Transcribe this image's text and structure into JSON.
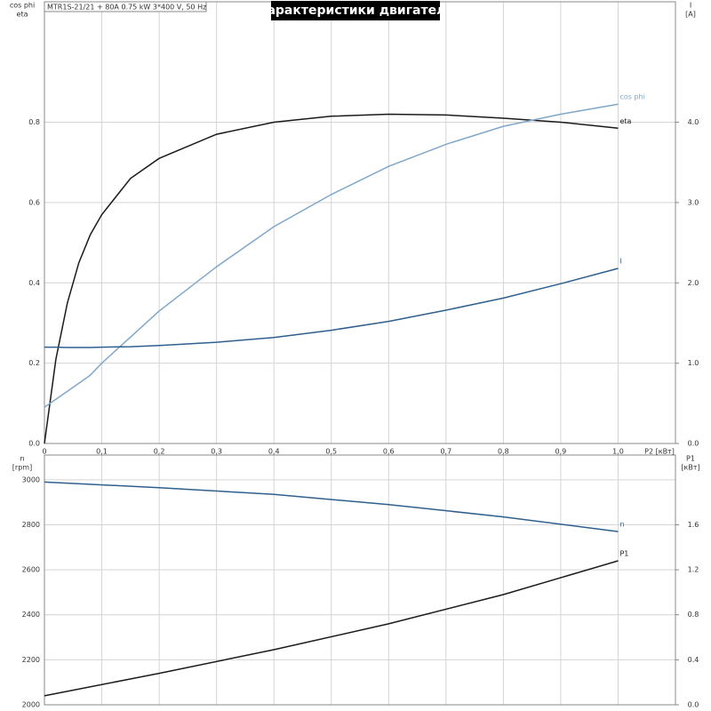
{
  "chart_data": [
    {
      "type": "line",
      "title": "Характеристики двигателя",
      "subtitle": "MTR1S-21/21 + 80A   0.75 kW   3*400 V, 50 Hz",
      "y_label": [
        "cos phi",
        "eta"
      ],
      "y2_label": [
        "I",
        "[A]"
      ],
      "x_label": "P2 [кВт]",
      "x": [
        0,
        0.02,
        0.04,
        0.06,
        0.08,
        0.1,
        0.15,
        0.2,
        0.3,
        0.4,
        0.5,
        0.6,
        0.7,
        0.8,
        0.9,
        1.0
      ],
      "xlim": [
        0,
        1.1
      ],
      "xticks": [
        0,
        {
          "value": 0.1,
          "label": "0,1"
        },
        {
          "value": 0.2,
          "label": "0,2"
        },
        {
          "value": 0.3,
          "label": "0,3"
        },
        {
          "value": 0.4,
          "label": "0,4"
        },
        {
          "value": 0.5,
          "label": "0,5"
        },
        {
          "value": 0.6,
          "label": "0,6"
        },
        {
          "value": 0.7,
          "label": "0,7"
        },
        {
          "value": 0.8,
          "label": "0,8"
        },
        {
          "value": 0.9,
          "label": "0,9"
        },
        {
          "value": 1.0,
          "label": "1,0"
        }
      ],
      "ylim": [
        0,
        1.1
      ],
      "yticks": [
        {
          "value": 0,
          "label": "0.0"
        },
        0.2,
        0.4,
        0.6,
        0.8
      ],
      "y2lim": [
        0,
        5.5
      ],
      "y2ticks": [
        {
          "value": 0,
          "label": "0.0"
        },
        {
          "value": 1,
          "label": "1.0"
        },
        {
          "value": 2,
          "label": "2.0"
        },
        {
          "value": 3,
          "label": "3.0"
        },
        {
          "value": 4,
          "label": "4.0"
        }
      ],
      "grid": true,
      "series": [
        {
          "name": "eta",
          "color": "#1a1a1a",
          "values": [
            0,
            0.21,
            0.35,
            0.45,
            0.52,
            0.57,
            0.66,
            0.71,
            0.77,
            0.8,
            0.815,
            0.82,
            0.818,
            0.81,
            0.8,
            0.785
          ]
        },
        {
          "name": "cos phi",
          "color": "#7fa7c9",
          "values": [
            0.09,
            0.11,
            0.13,
            0.15,
            0.17,
            0.2,
            0.265,
            0.33,
            0.44,
            0.54,
            0.62,
            0.69,
            0.745,
            0.79,
            0.82,
            0.845
          ]
        },
        {
          "name": "I",
          "color": "#2e5f8e",
          "axis": "y2",
          "values": [
            1.2,
            1.2,
            1.195,
            1.195,
            1.195,
            1.2,
            1.205,
            1.22,
            1.26,
            1.32,
            1.41,
            1.52,
            1.66,
            1.81,
            1.99,
            2.18
          ]
        }
      ]
    },
    {
      "type": "line",
      "y_label": [
        "n",
        "[rpm]"
      ],
      "y2_label": [
        "P1",
        "[кВт]"
      ],
      "x": [
        0,
        0.2,
        0.4,
        0.6,
        0.8,
        1.0
      ],
      "xlim": [
        0,
        1.1
      ],
      "ylim": [
        2000,
        3110
      ],
      "yticks": [
        2000,
        2200,
        2400,
        2600,
        2800,
        3000
      ],
      "y2lim": [
        0,
        2.22
      ],
      "y2ticks": [
        {
          "value": 0,
          "label": "0.0"
        },
        0.4,
        0.8,
        1.2,
        1.6
      ],
      "grid": true,
      "series": [
        {
          "name": "n",
          "color": "#2e5f8e",
          "values": [
            2990,
            2965,
            2935,
            2890,
            2835,
            2770
          ]
        },
        {
          "name": "P1",
          "color": "#1a1a1a",
          "axis": "y2",
          "values": [
            0.08,
            0.28,
            0.49,
            0.72,
            0.98,
            1.28
          ]
        }
      ]
    }
  ]
}
